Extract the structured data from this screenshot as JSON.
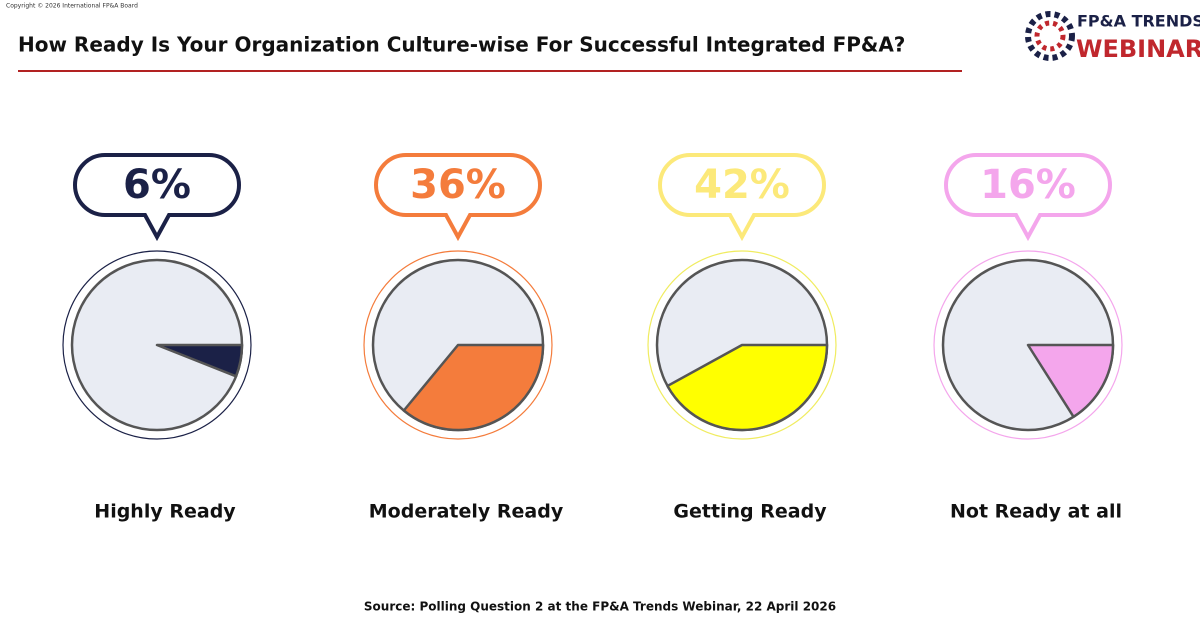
{
  "header": {
    "copyright": "Copyright © 2026 International FP&A Board",
    "logo_top": "FP&A TRENDS",
    "logo_bottom": "WEBINAR"
  },
  "chart_data": {
    "type": "pie",
    "title": "How Ready Is Your Organization Culture-wise For Successful Integrated FP&A?",
    "source": "Source: Polling Question 2 at the FP&A Trends Webinar, 22 April 2026",
    "categories": [
      "Highly Ready",
      "Moderately Ready",
      "Getting Ready",
      "Not Ready at all"
    ],
    "values": [
      6,
      36,
      42,
      16
    ],
    "value_labels": [
      "6%",
      "36%",
      "42%",
      "16%"
    ],
    "colors": [
      "#1b2147",
      "#f47c3c",
      "#ffff00",
      "#f4a6ec"
    ]
  }
}
